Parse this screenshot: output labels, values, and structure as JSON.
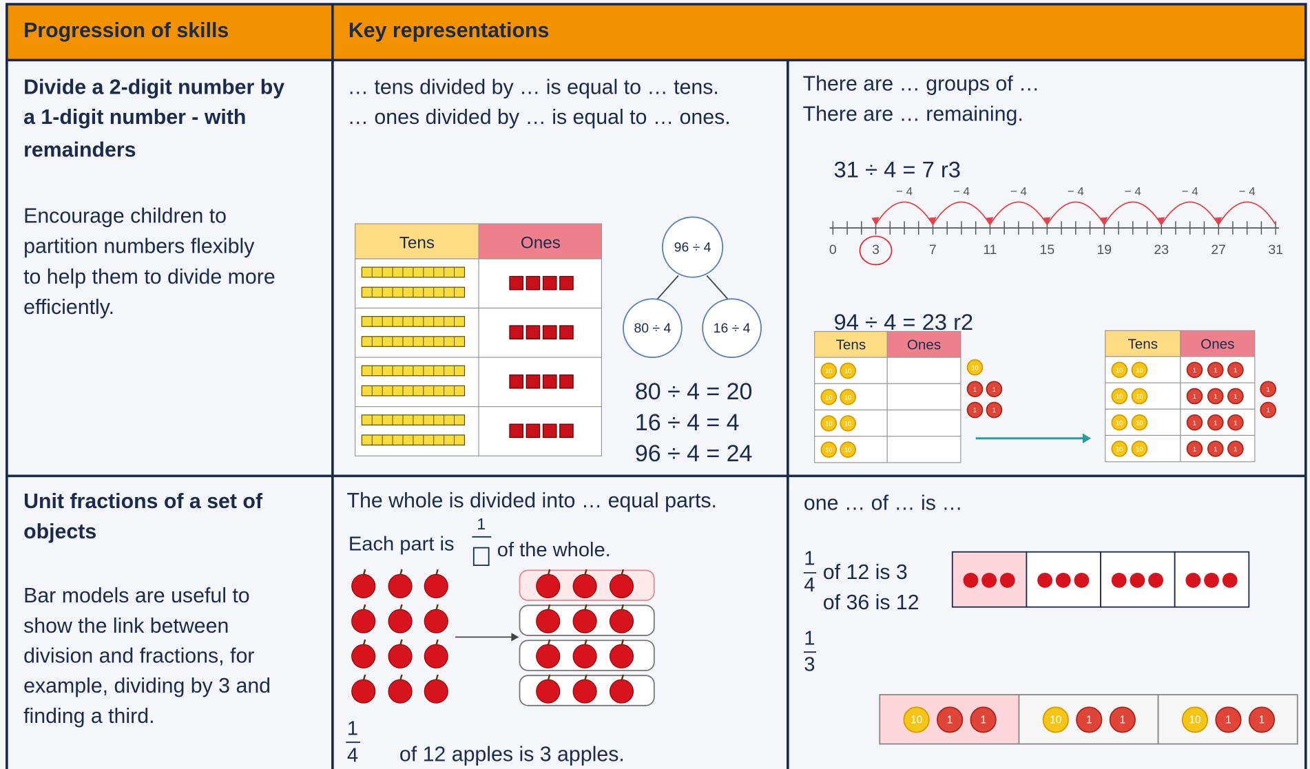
{
  "header": {
    "skills": "Progression of skills",
    "representations": "Key representations"
  },
  "rows": [
    {
      "skill": {
        "title": [
          "Divide a 2-digit number by",
          "a 1-digit number - with",
          "remainders"
        ],
        "description": [
          "Encourage children to",
          "partition numbers flexibly",
          "to help them to divide more",
          "efficiently."
        ]
      },
      "sentence_stems": [
        "… tens divided by … is equal to … tens.",
        "… ones divided by … is equal to … ones."
      ],
      "place_value_table": {
        "headers": [
          "Tens",
          "Ones"
        ]
      },
      "part_whole": {
        "whole": "96 ÷ 4",
        "parts": [
          "80 ÷ 4",
          "16 ÷ 4"
        ]
      },
      "equations": [
        "80 ÷ 4 = 20",
        "16 ÷ 4 = 4",
        "96 ÷ 4 = 24"
      ],
      "groups_stems": [
        "There are … groups of …",
        "There are … remaining."
      ],
      "number_line": {
        "equation": "31 ÷ 4 = 7 r3",
        "jump_labels": [
          "− 4",
          "− 4",
          "− 4",
          "− 4",
          "− 4",
          "− 4",
          "− 4"
        ],
        "labels": [
          "0",
          "3",
          "7",
          "11",
          "15",
          "19",
          "23",
          "27",
          "31"
        ]
      },
      "exchange": {
        "equation": "94 ÷ 4 = 23 r2",
        "tables": [
          {
            "headers": [
              "Tens",
              "Ones"
            ]
          },
          {
            "headers": [
              "Tens",
              "Ones"
            ]
          }
        ],
        "counter_labels": [
          "10",
          "1"
        ]
      }
    },
    {
      "skill": {
        "title": [
          "Unit fractions of a set of",
          "objects"
        ],
        "description": [
          "Bar models are useful to",
          "show the link between",
          "division and fractions, for",
          "example, dividing by 3 and",
          "finding a third."
        ]
      },
      "stem": "The whole is divided into … equal parts.",
      "each_part": {
        "before": "Each part is",
        "numerator": "1",
        "after": "of the whole."
      },
      "apples_statement": {
        "numerator": "1",
        "denominator": "4",
        "text": "of 12 apples is 3 apples."
      },
      "stem_2": "one … of … is …",
      "fraction_quarter": {
        "numerator": "1",
        "denominator": "4",
        "statements": [
          "of 12 is 3",
          "of 36 is 12"
        ]
      },
      "fraction_third": {
        "numerator": "1",
        "denominator": "3"
      },
      "bar_counter_labels": [
        "10",
        "1"
      ]
    }
  ]
}
